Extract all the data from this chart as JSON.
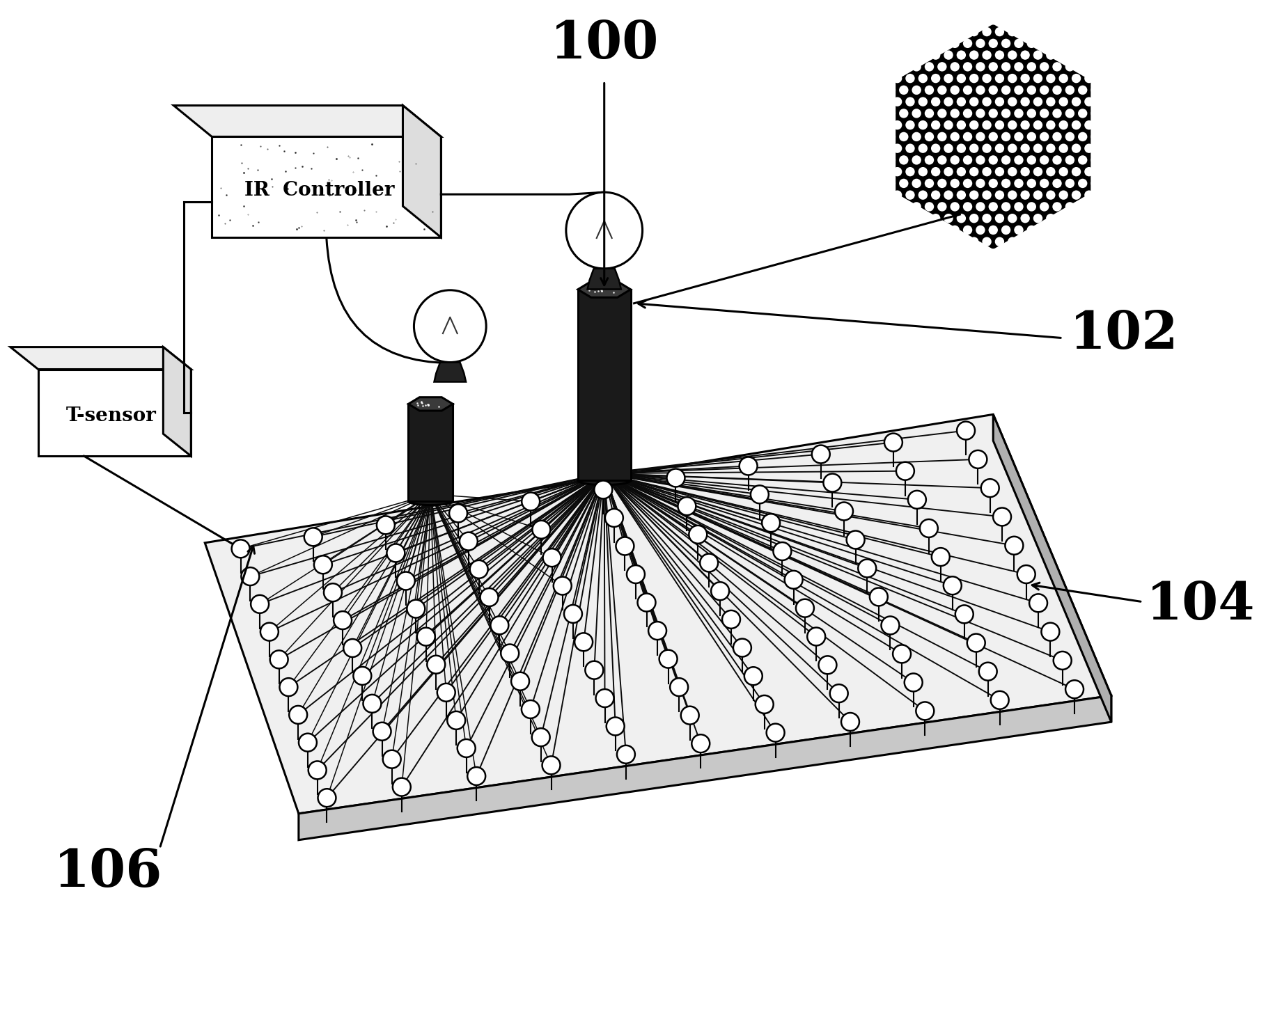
{
  "bg_color": "#ffffff",
  "line_color": "#000000",
  "label_100": "100",
  "label_102": "102",
  "label_104": "104",
  "label_106": "106",
  "ir_controller_text": "IR  Controller",
  "t_sensor_text": "T-sensor",
  "figsize": [
    18.41,
    14.51
  ],
  "dpi": 100,
  "label_fontsize": 54
}
